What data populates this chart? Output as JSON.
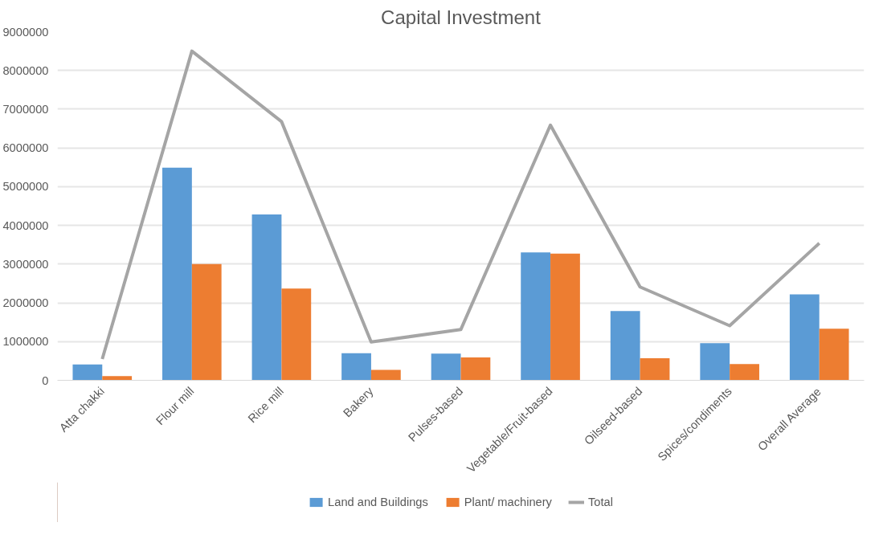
{
  "chart_data": {
    "type": "bar",
    "title": "Capital Investment",
    "categories": [
      "Atta chakki",
      "Flour mill",
      "Rice mill",
      "Bakery",
      "Pulses-based",
      "Vegetable/Fruit-based",
      "Oilseed-based",
      "Spices/condiments",
      "Overall Average"
    ],
    "series": [
      {
        "name": "Land and Buildings",
        "color": "#5b9bd5",
        "values": [
          410000,
          5490000,
          4280000,
          700000,
          690000,
          3300000,
          1790000,
          960000,
          2220000
        ]
      },
      {
        "name": "Plant/ machinery",
        "color": "#ed7d31",
        "values": [
          110000,
          3000000,
          2370000,
          270000,
          590000,
          3270000,
          570000,
          420000,
          1330000
        ]
      },
      {
        "name": "Total",
        "type": "line",
        "color": "#a5a5a5",
        "values": [
          550000,
          8500000,
          6680000,
          990000,
          1310000,
          6590000,
          2410000,
          1410000,
          3540000
        ]
      }
    ],
    "ylim": [
      0,
      9000000
    ],
    "yticks": [
      0,
      1000000,
      2000000,
      3000000,
      4000000,
      5000000,
      6000000,
      7000000,
      8000000,
      9000000
    ],
    "grid": "y",
    "legend": "bottom"
  }
}
